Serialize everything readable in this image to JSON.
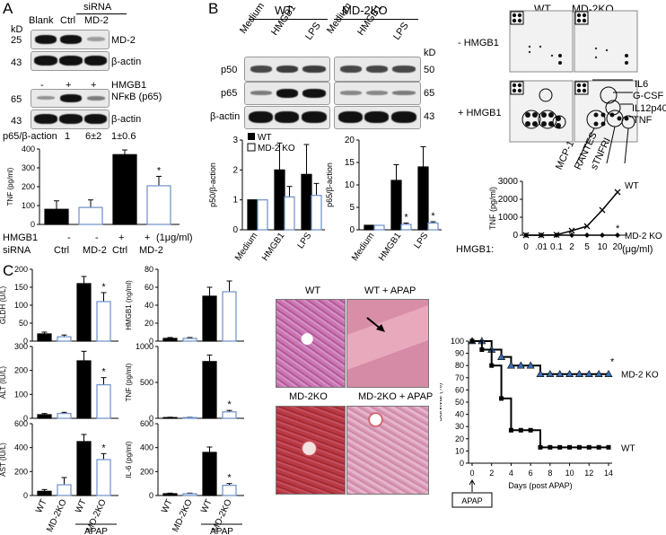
{
  "panelA": {
    "letter": "A",
    "sirna_header": "siRNA",
    "col_labels": [
      "Blank",
      "Ctrl",
      "MD-2"
    ],
    "kd": "kD",
    "blot1": [
      {
        "mw": "25",
        "label": "MD-2"
      },
      {
        "mw": "43",
        "label": "β-actin"
      }
    ],
    "hmgb1_label": "HMGB1",
    "hmgb1_signs": [
      "-",
      "+",
      "+"
    ],
    "blot2": [
      {
        "mw": "65",
        "label": "NFκB (p65)"
      },
      {
        "mw": "43",
        "label": "β-actin"
      }
    ],
    "ratio_label": "p65/β-action",
    "ratio_values": [
      "1",
      "6±2",
      "1±0.6"
    ],
    "chart_data": {
      "type": "bar",
      "categories": [
        "- / Ctrl",
        "- / MD-2",
        "+ / Ctrl",
        "+ / MD-2"
      ],
      "values": [
        80,
        90,
        370,
        205
      ],
      "errors": [
        45,
        40,
        25,
        50
      ],
      "fills": [
        "#000000",
        "#ffffff",
        "#000000",
        "#ffffff"
      ],
      "significance": [
        "",
        "",
        "",
        "*"
      ],
      "ylabel": "TNF (pg/ml)",
      "ylim": [
        0,
        400
      ],
      "yticks": [
        "0",
        "100",
        "200",
        "300",
        "400"
      ],
      "row_labels": [
        {
          "label": "HMGB1",
          "values": [
            "-",
            "-",
            "+",
            "+"
          ],
          "suffix": "(1μg/ml)"
        },
        {
          "label": "siRNA",
          "values": [
            "Ctrl",
            "MD-2",
            "Ctrl",
            "MD-2"
          ],
          "suffix": ""
        }
      ]
    }
  },
  "panelB": {
    "letter": "B",
    "groups": [
      "WT",
      "MD-2KO"
    ],
    "lanes": [
      "Medium",
      "HMGB1",
      "LPS"
    ],
    "kd": "kD",
    "rows": [
      {
        "label": "p50",
        "mw": "50"
      },
      {
        "label": "p65",
        "mw": "65"
      },
      {
        "label": "β-actin",
        "mw": "43"
      }
    ],
    "charts": [
      {
        "type": "bar",
        "ylabel": "p50/β-action",
        "ylim": [
          0,
          3
        ],
        "yticks": [
          "0",
          "1",
          "2",
          "3"
        ],
        "categories": [
          "Medium",
          "HMGB1",
          "LPS"
        ],
        "series": [
          {
            "name": "WT",
            "values": [
              1.0,
              2.0,
              1.85
            ],
            "errors": [
              0,
              0.9,
              1.0
            ]
          },
          {
            "name": "MD-2 KO",
            "values": [
              1.0,
              1.1,
              1.15
            ],
            "errors": [
              0,
              0.35,
              0.4
            ]
          }
        ],
        "significance": [
          "",
          "",
          ""
        ]
      },
      {
        "type": "bar",
        "ylabel": "p65/β-action",
        "ylim": [
          0,
          20
        ],
        "yticks": [
          "0",
          "5",
          "10",
          "15",
          "20"
        ],
        "categories": [
          "Medium",
          "HMGB1",
          "LPS"
        ],
        "series": [
          {
            "name": "WT",
            "values": [
              1.0,
              11.0,
              14.0
            ],
            "errors": [
              0,
              3.5,
              4.5
            ]
          },
          {
            "name": "MD-2 KO",
            "values": [
              1.0,
              1.2,
              1.5
            ],
            "errors": [
              0,
              0.3,
              0.3
            ]
          }
        ],
        "significance": [
          "",
          "*",
          "*"
        ]
      }
    ],
    "array": {
      "groups": [
        "WT",
        "MD-2KO"
      ],
      "rows": [
        "- HMGB1",
        "+ HMGB1"
      ],
      "right_labels": [
        "IL6",
        "G-CSF",
        "IL12p40",
        "TNF"
      ],
      "bottom_labels": [
        "MCP-1",
        "RANTES",
        "sTNFRI"
      ]
    },
    "tnf_chart": {
      "type": "line",
      "ylabel": "TNF (pg/ml)",
      "ylim": [
        0,
        3000
      ],
      "yticks": [
        "0",
        "1000",
        "2000",
        "3000"
      ],
      "xlabel_prefix": "HMGB1:",
      "x_tick_labels": [
        "0",
        ".01",
        "0.1",
        "2",
        "5",
        "10",
        "20"
      ],
      "x_unit": "(μg/ml)",
      "series": [
        {
          "name": "WT",
          "values": [
            0,
            0,
            20,
            250,
            500,
            1400,
            2400
          ],
          "marker": "x"
        },
        {
          "name": "MD-2 KO",
          "values": [
            0,
            0,
            0,
            0,
            0,
            0,
            0
          ],
          "marker": "diamond",
          "significance": "*"
        }
      ]
    }
  },
  "panelC": {
    "letter": "C",
    "bar_charts": [
      {
        "type": "bar",
        "ylabel": "GLDH (U/L)",
        "ylim": [
          0,
          200
        ],
        "yticks": [
          "0",
          "50",
          "100",
          "150",
          "200"
        ],
        "values": [
          20,
          12,
          160,
          110
        ],
        "errors": [
          5,
          5,
          20,
          25
        ],
        "significance": [
          "",
          "",
          "",
          "*"
        ]
      },
      {
        "type": "bar",
        "ylabel": "ALT (IU/L)",
        "ylim": [
          0,
          300
        ],
        "yticks": [
          "0",
          "100",
          "200",
          "300"
        ],
        "values": [
          15,
          20,
          240,
          140
        ],
        "errors": [
          5,
          5,
          40,
          30
        ],
        "significance": [
          "",
          "",
          "",
          "*"
        ]
      },
      {
        "type": "bar",
        "ylabel": "AST (IU/L)",
        "ylim": [
          0,
          600
        ],
        "yticks": [
          "0",
          "200",
          "400",
          "600"
        ],
        "values": [
          35,
          90,
          450,
          300
        ],
        "errors": [
          15,
          60,
          60,
          50
        ],
        "significance": [
          "",
          "",
          "",
          "*"
        ]
      },
      {
        "type": "bar",
        "ylabel": "HMGB1 (ng/ml)",
        "ylim": [
          0,
          80
        ],
        "yticks": [
          "0",
          "20",
          "40",
          "60",
          "80"
        ],
        "values": [
          3,
          3,
          50,
          55
        ],
        "errors": [
          1,
          1,
          10,
          12
        ],
        "significance": [
          "",
          "",
          "",
          ""
        ]
      },
      {
        "type": "bar",
        "ylabel": "TNF (pg/ml)",
        "ylim": [
          0,
          1000
        ],
        "yticks": [
          "0",
          "500",
          "1000"
        ],
        "values": [
          10,
          10,
          790,
          90
        ],
        "errors": [
          5,
          5,
          90,
          20
        ],
        "significance": [
          "",
          "",
          "",
          "*"
        ]
      },
      {
        "type": "bar",
        "ylabel": "IL-6 (pg/ml)",
        "ylim": [
          0,
          600
        ],
        "yticks": [
          "0",
          "200",
          "400",
          "600"
        ],
        "values": [
          15,
          15,
          360,
          85
        ],
        "errors": [
          5,
          5,
          45,
          15
        ],
        "significance": [
          "",
          "",
          "",
          "*"
        ]
      }
    ],
    "fills": [
      "#000000",
      "#ffffff",
      "#000000",
      "#ffffff"
    ],
    "x_labels": [
      "WT",
      "MD-2KO",
      "WT",
      "MD-2KO"
    ],
    "apap_label": "APAP",
    "histology": [
      {
        "title": "WT"
      },
      {
        "title": "WT + APAP"
      },
      {
        "title": "MD-2KO"
      },
      {
        "title": "MD-2KO + APAP"
      }
    ],
    "survival_chart": {
      "type": "line",
      "ylabel": "Survival (%)",
      "xlabel": "Days (post APAP)",
      "ylim": [
        0,
        100
      ],
      "yticks": [
        "0",
        "10",
        "20",
        "30",
        "40",
        "50",
        "60",
        "70",
        "80",
        "90",
        "100"
      ],
      "xlim": [
        0,
        14
      ],
      "xticks": [
        "0",
        "2",
        "4",
        "6",
        "8",
        "10",
        "12",
        "14"
      ],
      "series": [
        {
          "name": "MD-2 KO",
          "x": [
            0,
            1,
            2,
            3,
            4,
            5,
            6,
            7,
            8,
            9,
            10,
            11,
            12,
            13,
            14
          ],
          "y": [
            100,
            100,
            93,
            87,
            80,
            80,
            80,
            73,
            73,
            73,
            73,
            73,
            73,
            73,
            73
          ],
          "significance": "*"
        },
        {
          "name": "WT",
          "x": [
            0,
            1,
            2,
            3,
            4,
            5,
            6,
            7,
            8,
            9,
            10,
            11,
            12,
            13,
            14
          ],
          "y": [
            100,
            93,
            80,
            53,
            27,
            27,
            27,
            13,
            13,
            13,
            13,
            13,
            13,
            13,
            13
          ]
        }
      ],
      "apap_marker": "APAP"
    }
  }
}
